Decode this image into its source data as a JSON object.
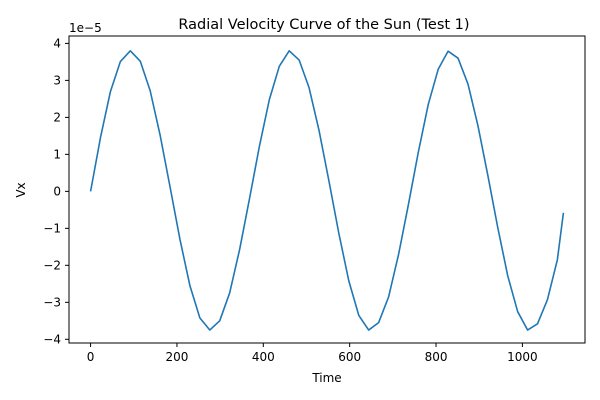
{
  "chart_data": {
    "type": "line",
    "title": "Radial Velocity Curve of the Sun (Test 1)",
    "xlabel": "Time",
    "ylabel": "Vx",
    "y_offset_label": "1e−5",
    "xlim": [
      -50,
      1145
    ],
    "ylim": [
      -4.1e-05,
      4.2e-05
    ],
    "x_ticks": [
      0,
      200,
      400,
      600,
      800,
      1000
    ],
    "x_tick_labels": [
      "0",
      "200",
      "400",
      "600",
      "800",
      "1000"
    ],
    "y_ticks": [
      -4e-05,
      -3e-05,
      -2e-05,
      -1e-05,
      0,
      1e-05,
      2e-05,
      3e-05,
      4e-05
    ],
    "y_tick_labels": [
      "−4",
      "−3",
      "−2",
      "−1",
      "0",
      "1",
      "2",
      "3",
      "4"
    ],
    "grid": false,
    "series": [
      {
        "color": "#1f77b4",
        "x": [
          0,
          23,
          46,
          69,
          92,
          115,
          138,
          161,
          184,
          207,
          230,
          253,
          276,
          299,
          322,
          345,
          368,
          391,
          414,
          437,
          460,
          483,
          506,
          529,
          552,
          575,
          598,
          621,
          644,
          667,
          690,
          713,
          736,
          759,
          782,
          805,
          828,
          851,
          874,
          897,
          920,
          943,
          966,
          989,
          1012,
          1035,
          1058,
          1081,
          1095
        ],
        "y": [
          0.0,
          1.46e-05,
          2.7e-05,
          3.51e-05,
          3.8e-05,
          3.52e-05,
          2.72e-05,
          1.52e-05,
          1.2e-06,
          -1.3e-05,
          -2.55e-05,
          -3.42e-05,
          -3.75e-05,
          -3.5e-05,
          -2.75e-05,
          -1.58e-05,
          -2e-06,
          1.22e-05,
          2.48e-05,
          3.38e-05,
          3.8e-05,
          3.55e-05,
          2.8e-05,
          1.65e-05,
          2.8e-06,
          -1.14e-05,
          -2.42e-05,
          -3.35e-05,
          -3.75e-05,
          -3.55e-05,
          -2.86e-05,
          -1.72e-05,
          -3.6e-06,
          1.06e-05,
          2.35e-05,
          3.3e-05,
          3.79e-05,
          3.6e-05,
          2.9e-05,
          1.78e-05,
          4.3e-06,
          -9.8e-06,
          -2.28e-05,
          -3.25e-05,
          -3.75e-05,
          -3.58e-05,
          -2.93e-05,
          -1.85e-05,
          -5.8e-06
        ]
      }
    ]
  }
}
